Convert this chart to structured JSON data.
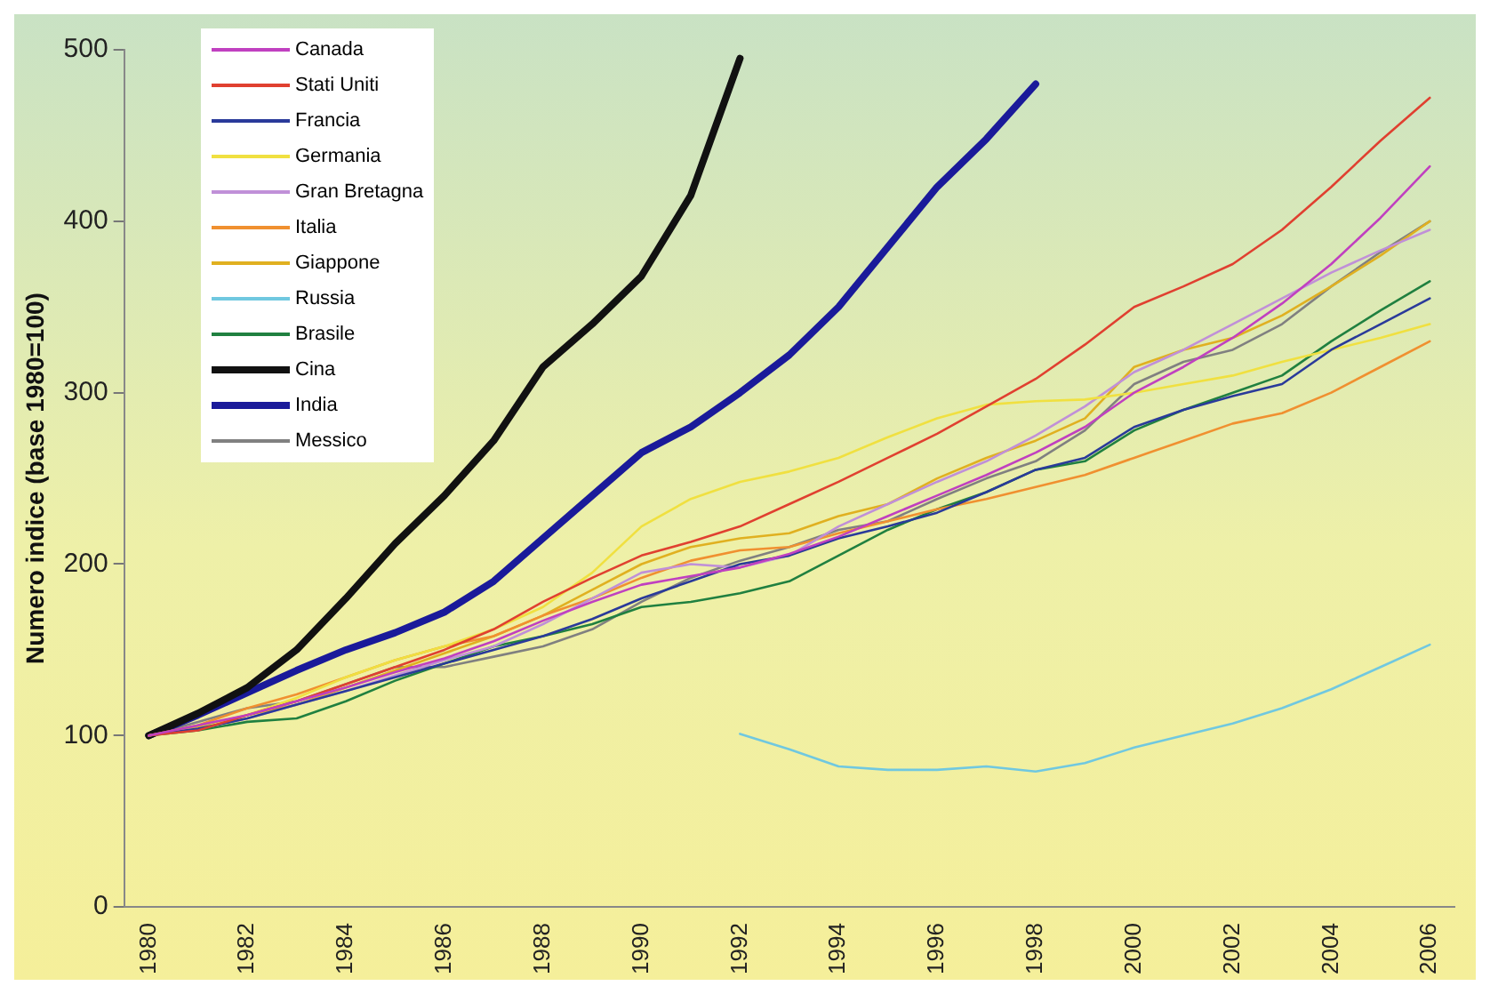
{
  "chart_data": {
    "type": "line",
    "ylabel": "Numero indice (base 1980=100)",
    "categories": [
      "1980",
      null,
      "1982",
      null,
      "1984",
      null,
      "1986",
      null,
      "1988",
      null,
      "1990",
      null,
      "1992",
      null,
      "1994",
      null,
      "1996",
      null,
      "1998",
      null,
      "2000",
      null,
      "2002",
      null,
      "2004",
      null,
      "2006"
    ],
    "ylim": [
      0,
      500
    ],
    "yticks": [
      0,
      100,
      200,
      300,
      400,
      500
    ],
    "grid": false,
    "legend": "top left",
    "marker": "none",
    "line_style": "solid",
    "series": [
      {
        "name": "Canada",
        "color": "#c040c0",
        "values": [
          100,
          106,
          112,
          120,
          128,
          137,
          145,
          155,
          167,
          178,
          188,
          193,
          198,
          206,
          216,
          228,
          240,
          252,
          265,
          280,
          300,
          315,
          332,
          352,
          375,
          402,
          432
        ]
      },
      {
        "name": "Stati Uniti",
        "color": "#e04030",
        "values": [
          100,
          103,
          112,
          120,
          130,
          140,
          150,
          162,
          178,
          192,
          205,
          213,
          222,
          235,
          248,
          262,
          276,
          292,
          308,
          328,
          350,
          362,
          375,
          395,
          420,
          447,
          472
        ]
      },
      {
        "name": "Francia",
        "color": "#2a3a9a",
        "values": [
          100,
          104,
          110,
          118,
          126,
          134,
          142,
          150,
          158,
          168,
          180,
          190,
          200,
          205,
          215,
          222,
          230,
          242,
          255,
          262,
          280,
          290,
          298,
          305,
          325,
          340,
          355
        ]
      },
      {
        "name": "Germania",
        "color": "#f0e040",
        "values": [
          100,
          104,
          112,
          122,
          134,
          144,
          152,
          162,
          175,
          195,
          222,
          238,
          248,
          254,
          262,
          274,
          285,
          293,
          295,
          296,
          300,
          305,
          310,
          318,
          325,
          332,
          340
        ]
      },
      {
        "name": "Gran Bretagna",
        "color": "#c090d8",
        "values": [
          100,
          104,
          110,
          118,
          126,
          135,
          144,
          152,
          165,
          180,
          195,
          200,
          198,
          205,
          222,
          235,
          248,
          260,
          275,
          292,
          312,
          325,
          340,
          355,
          370,
          383,
          395
        ]
      },
      {
        "name": "Italia",
        "color": "#f09030",
        "values": [
          100,
          106,
          116,
          124,
          134,
          144,
          152,
          158,
          170,
          180,
          192,
          202,
          208,
          210,
          218,
          225,
          232,
          238,
          245,
          252,
          262,
          272,
          282,
          288,
          300,
          315,
          330
        ]
      },
      {
        "name": "Giappone",
        "color": "#e0b020",
        "values": [
          100,
          105,
          112,
          118,
          128,
          138,
          148,
          158,
          170,
          185,
          200,
          210,
          215,
          218,
          228,
          235,
          250,
          262,
          272,
          285,
          315,
          325,
          332,
          345,
          362,
          380,
          400
        ]
      },
      {
        "name": "Russia",
        "color": "#70c8e0",
        "values": [
          null,
          null,
          null,
          null,
          null,
          null,
          null,
          null,
          null,
          null,
          null,
          null,
          101,
          92,
          82,
          80,
          80,
          82,
          79,
          84,
          93,
          100,
          107,
          116,
          127,
          140,
          153
        ]
      },
      {
        "name": "Brasile",
        "color": "#208040",
        "values": [
          100,
          103,
          108,
          110,
          120,
          132,
          142,
          152,
          158,
          165,
          175,
          178,
          183,
          190,
          205,
          220,
          232,
          242,
          255,
          260,
          278,
          290,
          300,
          310,
          330,
          348,
          365
        ]
      },
      {
        "name": "Cina",
        "color": "#111111",
        "values": [
          100,
          113,
          128,
          150,
          180,
          212,
          240,
          272,
          315,
          340,
          368,
          415,
          495,
          null,
          null,
          null,
          null,
          null,
          null,
          null,
          null,
          null,
          null,
          null,
          null,
          null,
          null
        ]
      },
      {
        "name": "India",
        "color": "#1a1a9a",
        "values": [
          100,
          112,
          125,
          138,
          150,
          160,
          172,
          190,
          215,
          240,
          265,
          280,
          300,
          322,
          350,
          385,
          420,
          448,
          480,
          null,
          null,
          null,
          null,
          null,
          null,
          null,
          null
        ]
      },
      {
        "name": "Messico",
        "color": "#808080",
        "values": [
          100,
          108,
          116,
          120,
          130,
          140,
          140,
          146,
          152,
          162,
          178,
          192,
          202,
          210,
          220,
          225,
          238,
          250,
          260,
          278,
          305,
          318,
          325,
          340,
          362,
          382,
          400
        ]
      }
    ]
  }
}
